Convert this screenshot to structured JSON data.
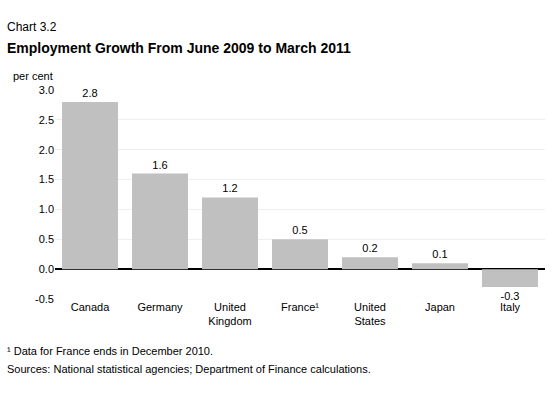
{
  "chart_data": {
    "type": "bar",
    "chart_label": "Chart 3.2",
    "title": "Employment Growth From June 2009 to March 2011",
    "ylabel": "per cent",
    "categories": [
      "Canada",
      "Germany",
      "United\nKingdom",
      "France¹",
      "United\nStates",
      "Japan",
      "Italy"
    ],
    "values": [
      2.8,
      1.6,
      1.2,
      0.5,
      0.2,
      0.1,
      -0.3
    ],
    "color": "#c0c0c0",
    "ylim": [
      -0.5,
      3.0
    ],
    "yticks": [
      -0.5,
      {
        "value": 0.0,
        "label": "0.0"
      },
      0.5,
      {
        "value": 1.0,
        "label": "1.0"
      },
      1.5,
      {
        "value": 2.0,
        "label": "2.0"
      },
      2.5,
      {
        "value": 3.0,
        "label": "3.0"
      }
    ],
    "grid": true,
    "data_labels": true,
    "footnote": "¹ Data for France ends in December 2010.",
    "source": "Sources: National statistical agencies; Department of Finance calculations."
  }
}
